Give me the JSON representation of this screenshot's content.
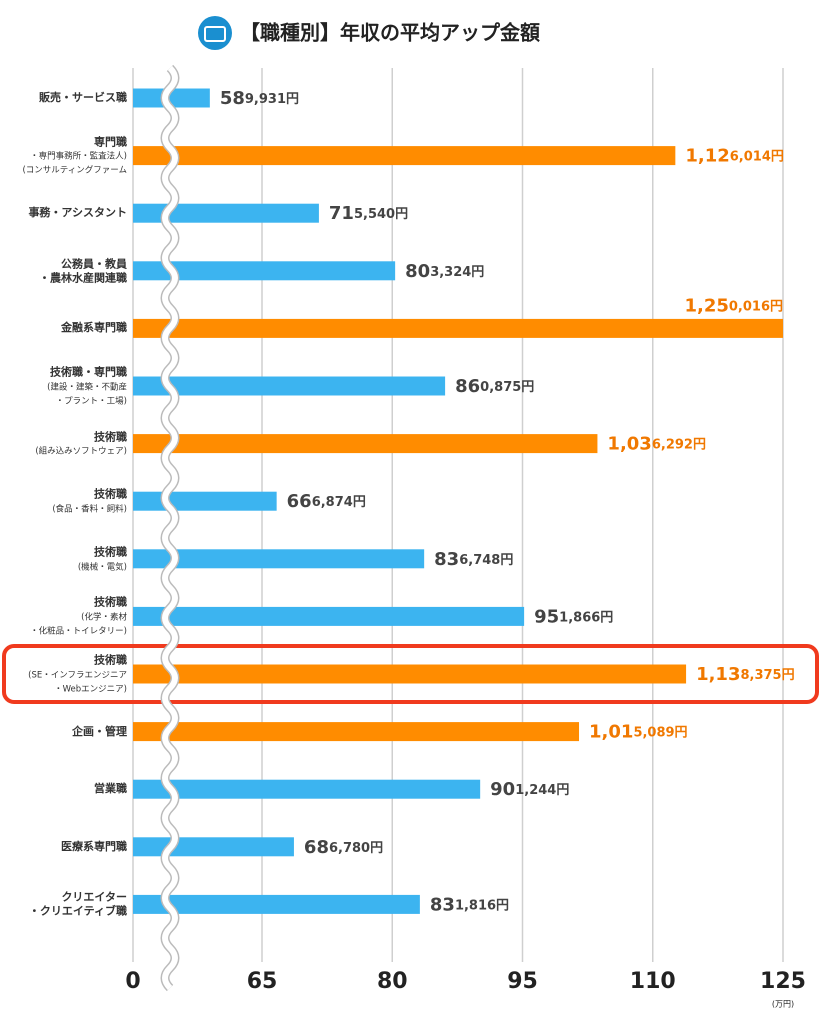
{
  "chart_data": {
    "type": "bar",
    "orientation": "horizontal",
    "title": "【職種別】年収の平均アップ金額",
    "categories": [
      "販売・サービス職",
      "専門職\n・専門事務所・監査法人)\n(コンサルティングファーム",
      "事務・アシスタント",
      "公務員・教員\n・農林水産関連職",
      "金融系専門職",
      "技術職・専門職\n(建設・建築・不動産\n・プラント・工場)",
      "技術職\n(組み込みソフトウェア)",
      "技術職\n(食品・香料・飼料)",
      "技術職\n(機械・電気)",
      "技術職\n(化学・素材\n・化粧品・トイレタリー)",
      "技術職\n(SE・インフラエンジニア\n・Webエンジニア)",
      "企画・管理",
      "営業職",
      "医療系専門職",
      "クリエイター\n・クリエイティブ職"
    ],
    "values": [
      58.9931,
      112.6014,
      71.554,
      80.3324,
      125.0016,
      86.0875,
      103.6292,
      66.6874,
      83.6748,
      95.1866,
      113.8375,
      101.5089,
      90.1244,
      68.678,
      83.1816
    ],
    "value_labels": [
      "589,931円",
      "1,126,014円",
      "715,540円",
      "803,324円",
      "1,250,016円",
      "860,875円",
      "1,036,292円",
      "666,874円",
      "836,748円",
      "951,866円",
      "1,138,375円",
      "1,015,089円",
      "901,244円",
      "686,780円",
      "831,816円"
    ],
    "colors": [
      "#3cb4f0",
      "#ff8c00",
      "#3cb4f0",
      "#3cb4f0",
      "#ff8c00",
      "#3cb4f0",
      "#ff8c00",
      "#3cb4f0",
      "#3cb4f0",
      "#3cb4f0",
      "#ff8c00",
      "#ff8c00",
      "#3cb4f0",
      "#3cb4f0",
      "#3cb4f0"
    ],
    "highlight": 10,
    "xlim": [
      0,
      125
    ],
    "xticks": [
      0,
      65,
      80,
      95,
      110,
      125
    ],
    "axis_break": true,
    "grid": true,
    "x_unit": "(万円)"
  }
}
